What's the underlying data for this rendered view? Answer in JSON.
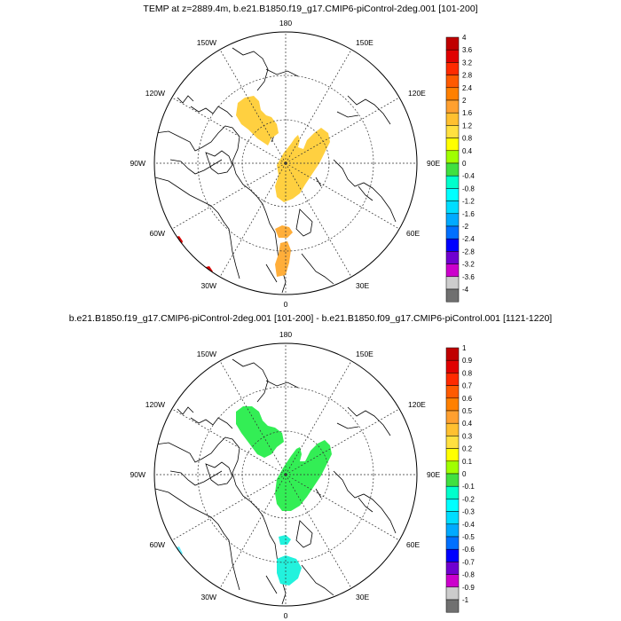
{
  "panels": [
    {
      "title": "TEMP at z=2889.4m, b.e21.B1850.f19_g17.CMIP6-piControl-2deg.001 [101-200]",
      "longitude_labels": [
        "180",
        "150E",
        "120E",
        "90E",
        "60E",
        "30E",
        "0",
        "30W",
        "60W",
        "90W",
        "120W",
        "150W"
      ],
      "colorbar": {
        "labels": [
          "4",
          "3.6",
          "3.2",
          "2.8",
          "2.4",
          "2",
          "1.6",
          "1.2",
          "0.8",
          "0.4",
          "0",
          "-0.4",
          "-0.8",
          "-1.2",
          "-1.6",
          "-2",
          "-2.4",
          "-2.8",
          "-3.2",
          "-3.6",
          "-4"
        ],
        "colors": [
          "#c00000",
          "#e00000",
          "#ff2a00",
          "#ff5a00",
          "#ff8000",
          "#ffa030",
          "#ffc030",
          "#ffe040",
          "#ffff00",
          "#a0ff00",
          "#40e040",
          "#00ffcc",
          "#00ffff",
          "#00ddff",
          "#00aaff",
          "#0070ff",
          "#0000ff",
          "#7000d0",
          "#cc00cc",
          "#cccccc",
          "#707070"
        ]
      }
    },
    {
      "title": "b.e21.B1850.f19_g17.CMIP6-piControl-2deg.001 [101-200] - b.e21.B1850.f09_g17.CMIP6-piControl.001 [1121-1220]",
      "longitude_labels": [
        "180",
        "150E",
        "120E",
        "90E",
        "60E",
        "30E",
        "0",
        "30W",
        "60W",
        "90W",
        "120W",
        "150W"
      ],
      "colorbar": {
        "labels": [
          "1",
          "0.9",
          "0.8",
          "0.7",
          "0.6",
          "0.5",
          "0.4",
          "0.3",
          "0.2",
          "0.1",
          "0",
          "-0.1",
          "-0.2",
          "-0.3",
          "-0.4",
          "-0.5",
          "-0.6",
          "-0.7",
          "-0.8",
          "-0.9",
          "-1"
        ],
        "colors": [
          "#c00000",
          "#e00000",
          "#ff2a00",
          "#ff5a00",
          "#ff8000",
          "#ffa030",
          "#ffc030",
          "#ffe040",
          "#ffff00",
          "#a0ff00",
          "#40e040",
          "#00ffcc",
          "#00ffff",
          "#00ddff",
          "#00aaff",
          "#0070ff",
          "#0000ff",
          "#7000d0",
          "#cc00cc",
          "#cccccc",
          "#707070"
        ]
      }
    }
  ],
  "fill_colors": {
    "panel1_yellow": "#ffd040",
    "panel1_orange": "#ffae3a",
    "panel1_red": "#d80000",
    "panel2_green": "#33ee55",
    "panel2_cyan": "#22f2dd",
    "panel2_lightcyan": "#66eeff"
  }
}
